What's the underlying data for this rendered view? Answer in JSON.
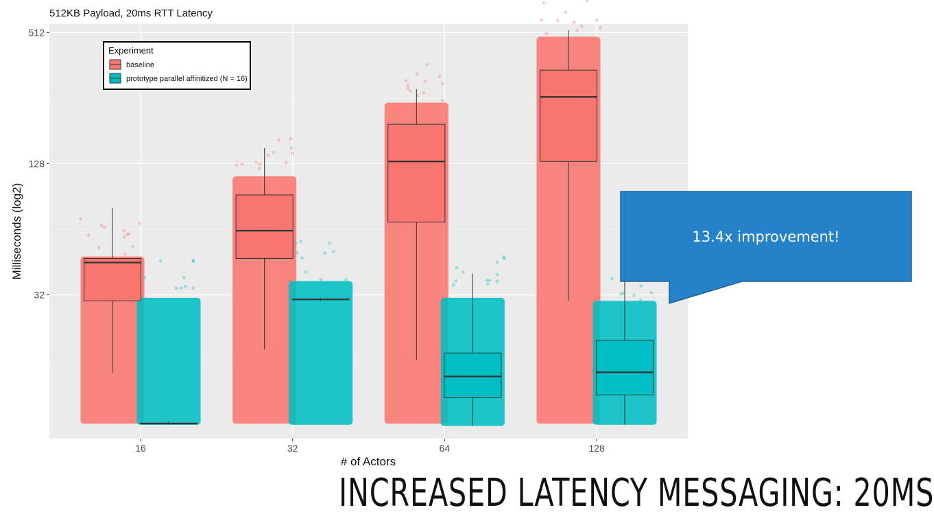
{
  "slide": {
    "title": "INCREASED LATENCY MESSAGING: 20MS"
  },
  "callout": {
    "text": "13.4x improvement!",
    "color": "#2682c8"
  },
  "chart_data": {
    "type": "boxplot",
    "title": "512KB Payload, 20ms RTT Latency",
    "xlabel": "# of Actors",
    "ylabel": "Milliseconds (log2)",
    "y_scale": "log2",
    "ylim": [
      7,
      560
    ],
    "yticks": [
      "32",
      "128",
      "512"
    ],
    "yticks_values": [
      32,
      128,
      512
    ],
    "categories": [
      "16",
      "32",
      "64",
      "128"
    ],
    "legend": {
      "title": "Experiment",
      "position": "top-left"
    },
    "grid": true,
    "series": [
      {
        "name": "baseline",
        "color": "#f8766d",
        "boxes": [
          {
            "category": "16",
            "whisker_low": 14,
            "q1": 30,
            "median": 45,
            "q3": 47,
            "whisker_high": 80,
            "points_low": 8.2,
            "points_high": 48
          },
          {
            "category": "32",
            "whisker_low": 18,
            "q1": 47,
            "median": 63,
            "q3": 92,
            "whisker_high": 151,
            "points_low": 8.2,
            "points_high": 112
          },
          {
            "category": "64",
            "whisker_low": 16,
            "q1": 69,
            "median": 131,
            "q3": 194,
            "whisker_high": 281,
            "points_low": 8.2,
            "points_high": 244
          },
          {
            "category": "128",
            "whisker_low": 30,
            "q1": 131,
            "median": 259,
            "q3": 344,
            "whisker_high": 525,
            "points_low": 8.2,
            "points_high": 490
          }
        ]
      },
      {
        "name": "prototype parallel affinitized (N = 16)",
        "color": "#00bfc4",
        "boxes": [
          {
            "category": "16",
            "whisker_low": 8.1,
            "q1": 8.2,
            "median": 8.2,
            "q3": 8.25,
            "whisker_high": 8.4,
            "points_low": 8.1,
            "points_high": 31
          },
          {
            "category": "32",
            "whisker_low": 30,
            "q1": 30.5,
            "median": 30.5,
            "q3": 30.6,
            "whisker_high": 31,
            "points_low": 8.1,
            "points_high": 37
          },
          {
            "category": "64",
            "whisker_low": 8.0,
            "q1": 10.8,
            "median": 13.5,
            "q3": 17.3,
            "whisker_high": 40,
            "points_low": 8.0,
            "points_high": 31
          },
          {
            "category": "128",
            "whisker_low": 8.1,
            "q1": 11.1,
            "median": 14.1,
            "q3": 19.8,
            "whisker_high": 46,
            "points_low": 8.1,
            "points_high": 30
          }
        ]
      }
    ]
  }
}
